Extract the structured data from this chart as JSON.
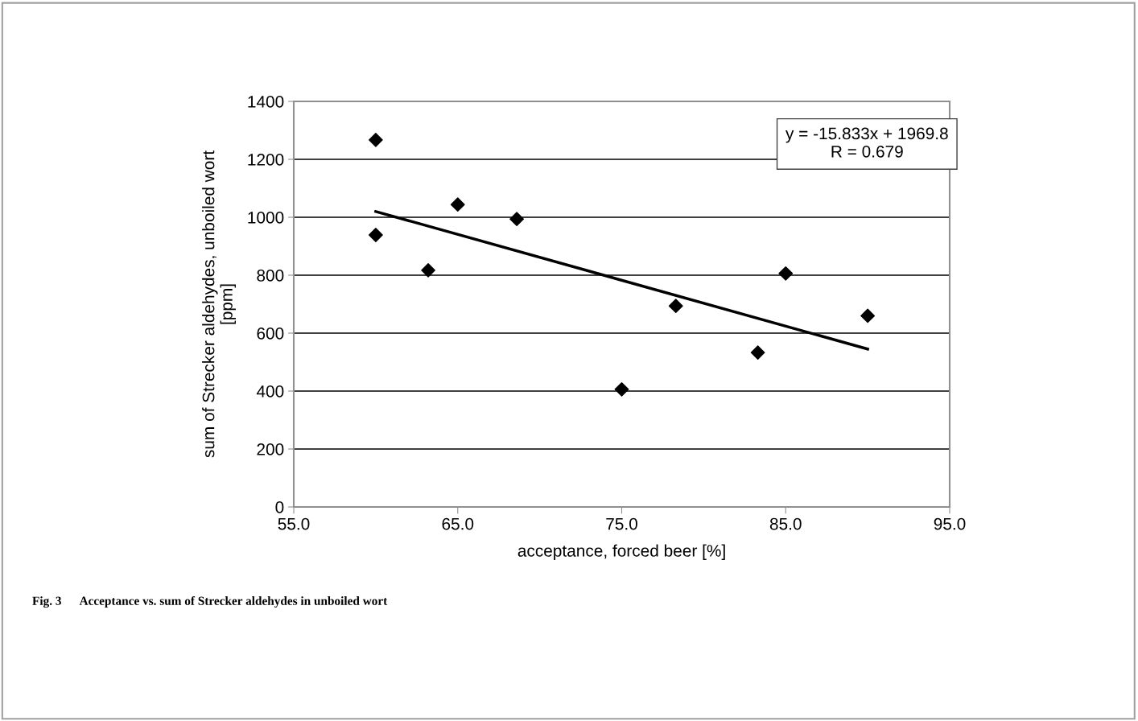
{
  "chart_data": {
    "type": "scatter",
    "xlabel": "acceptance, forced beer [%]",
    "ylabel": "sum of Strecker aldehydes, unboiled wort\n[ppm]",
    "x": [
      60.0,
      60.0,
      63.2,
      65.0,
      68.6,
      75.0,
      78.3,
      83.3,
      85.0,
      90.0
    ],
    "series": [
      {
        "color": "#000000",
        "marker": "diamond",
        "values": [
          1267,
          939,
          817,
          1044,
          994,
          406,
          694,
          533,
          806,
          660
        ]
      },
      {
        "type": "line",
        "color": "#000000",
        "marker": "none",
        "line_style": "solid",
        "x": [
          60.0,
          90.0
        ],
        "values": [
          1020,
          545
        ]
      }
    ],
    "xlim": [
      55.0,
      95.0
    ],
    "xticks": [
      {
        "value": 55,
        "label": "55.0"
      },
      {
        "value": 65,
        "label": "65.0"
      },
      {
        "value": 75,
        "label": "75.0"
      },
      {
        "value": 85,
        "label": "85.0"
      },
      {
        "value": 95,
        "label": "95.0"
      }
    ],
    "ylim": [
      0,
      1400
    ],
    "yticks": [
      0,
      200,
      400,
      600,
      800,
      1000,
      1200,
      1400
    ],
    "grid": "y",
    "legend": false,
    "annotations": [
      "y = -15.833x + 1969.8\nR = 0.679",
      "Fig. 3      Acceptance vs. sum of Strecker aldehydes in unboiled wort"
    ]
  }
}
